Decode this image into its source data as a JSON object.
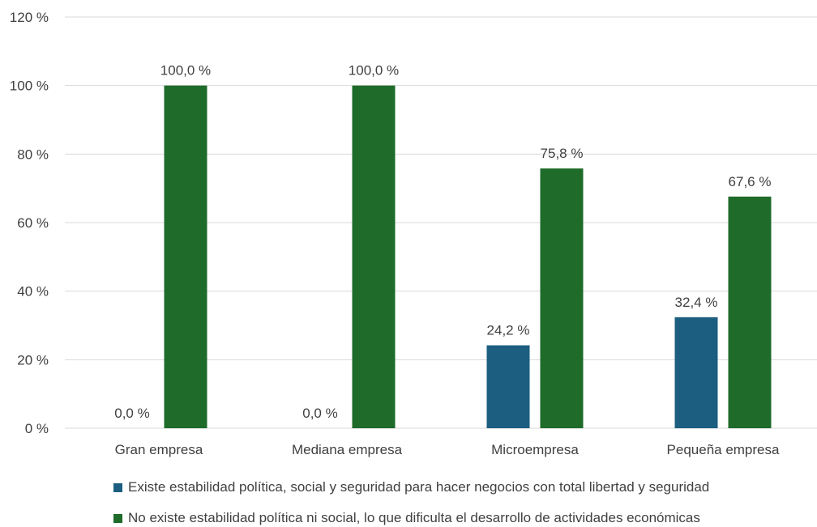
{
  "chart_data": {
    "type": "bar",
    "categories": [
      "Gran empresa",
      "Mediana empresa",
      "Microempresa",
      "Pequeña empresa"
    ],
    "series": [
      {
        "name": "Existe estabilidad política, social y seguridad para hacer negocios con total libertad y seguridad",
        "values": [
          0.0,
          0.0,
          24.2,
          32.4
        ],
        "labels": [
          "0,0 %",
          "0,0 %",
          "24,2 %",
          "32,4 %"
        ],
        "color": "#1b5e80"
      },
      {
        "name": "No existe estabilidad política ni social, lo que dificulta el desarrollo de actividades económicas",
        "values": [
          100.0,
          100.0,
          75.8,
          67.6
        ],
        "labels": [
          "100,0 %",
          "100,0 %",
          "75,8 %",
          "67,6 %"
        ],
        "color": "#1e6b2a"
      }
    ],
    "yticks": [
      "0 %",
      "20 %",
      "40 %",
      "60 %",
      "80 %",
      "100 %",
      "120 %"
    ],
    "ylim": [
      0,
      120
    ],
    "grid": true,
    "legend_position": "bottom"
  }
}
